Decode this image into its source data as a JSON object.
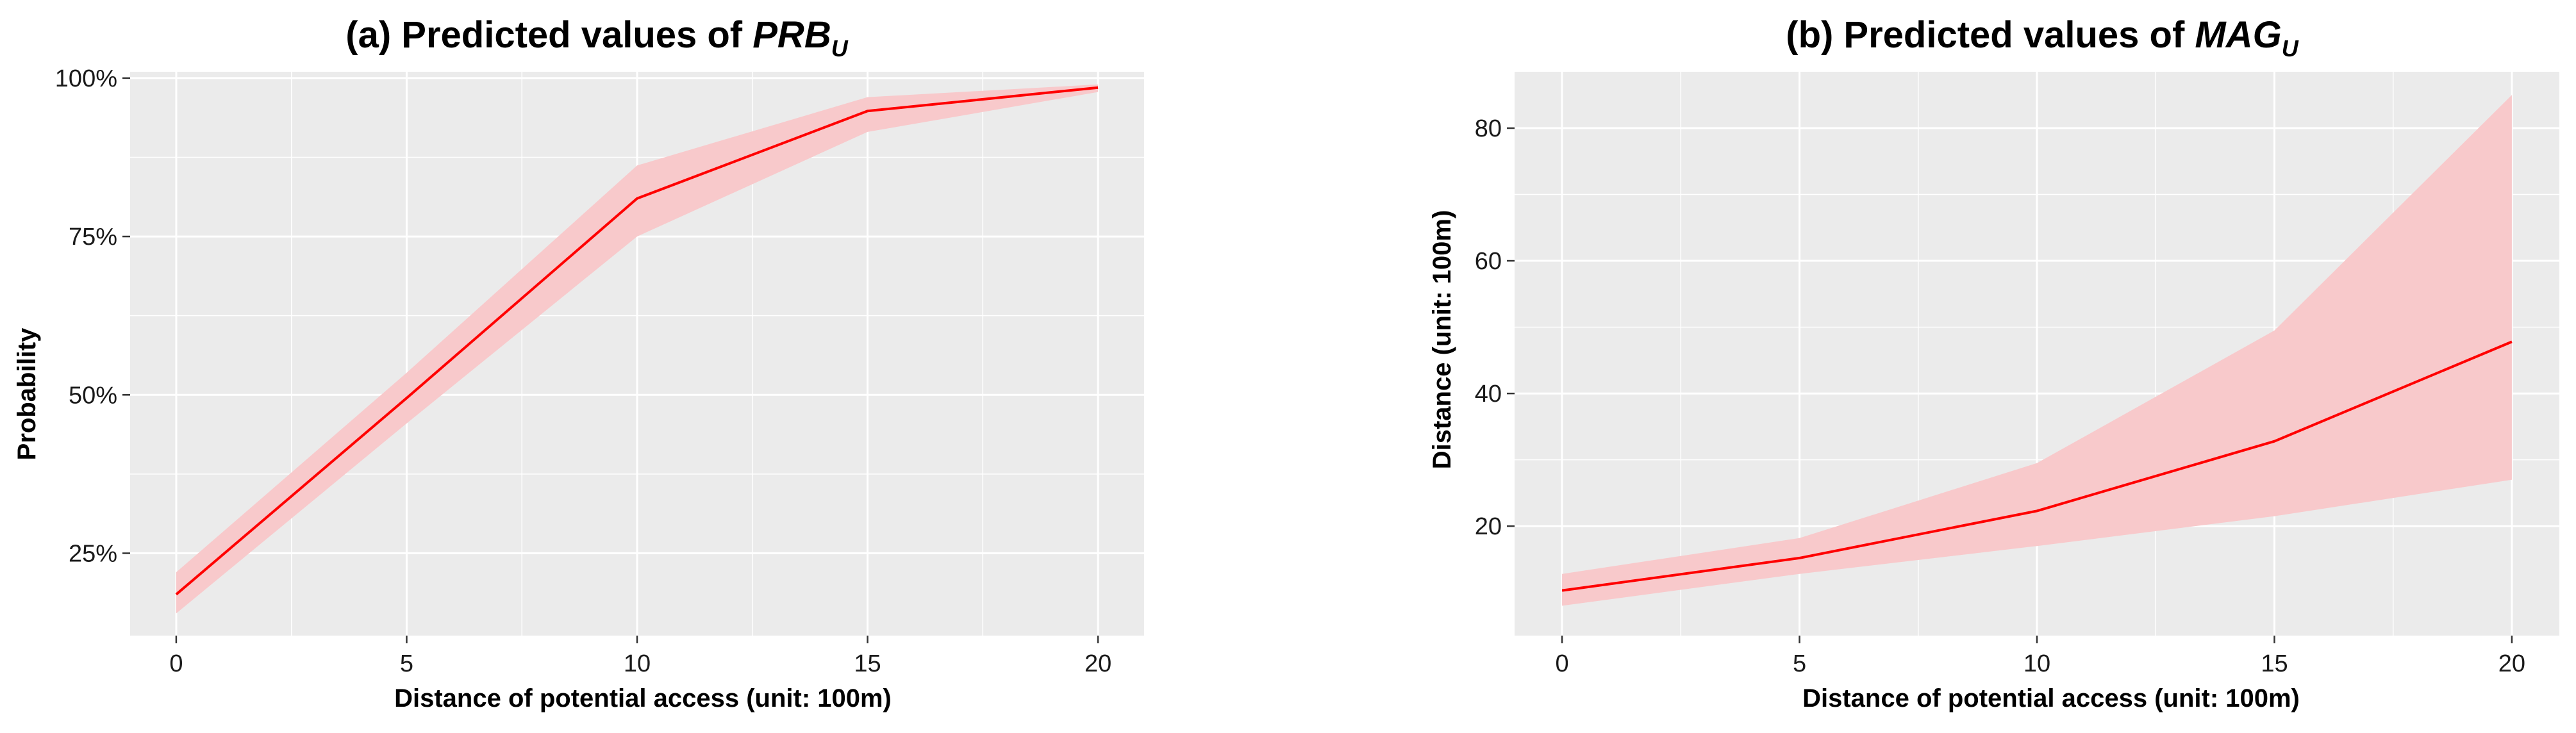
{
  "chart_data": [
    {
      "type": "line",
      "title": {
        "prefix": "(a) Predicted values of ",
        "var": "PRB",
        "sub": "U"
      },
      "xlabel": "Distance of potential access (unit: 100m)",
      "ylabel": "Probability",
      "xlim": [
        -1,
        21
      ],
      "ylim": [
        0.12,
        1.01
      ],
      "x_ticks": [
        0,
        5,
        10,
        15,
        20
      ],
      "y_ticks": [
        0.25,
        0.5,
        0.75,
        1.0
      ],
      "y_tick_labels": [
        "25%",
        "50%",
        "75%",
        "100%"
      ],
      "grid": true,
      "panel_background": "#ebebeb",
      "line_color": "#ff0000",
      "ribbon_color": "#f8c9cb",
      "series": [
        {
          "x": [
            0,
            5,
            10,
            15,
            20
          ],
          "y": [
            0.185,
            0.495,
            0.81,
            0.948,
            0.985
          ],
          "lower": [
            0.155,
            0.455,
            0.75,
            0.915,
            0.978
          ],
          "upper": [
            0.22,
            0.535,
            0.862,
            0.97,
            0.99
          ]
        }
      ]
    },
    {
      "type": "line",
      "title": {
        "prefix": "(b) Predicted values of ",
        "var": "MAG",
        "sub": "U"
      },
      "xlabel": "Distance of potential access (unit: 100m)",
      "ylabel": "Distance (unit: 100m)",
      "xlim": [
        -1,
        21
      ],
      "ylim": [
        3.5,
        88.5
      ],
      "x_ticks": [
        0,
        5,
        10,
        15,
        20
      ],
      "y_ticks": [
        20,
        40,
        60,
        80
      ],
      "y_tick_labels": [
        "20",
        "40",
        "60",
        "80"
      ],
      "grid": true,
      "panel_background": "#ebebeb",
      "line_color": "#ff0000",
      "ribbon_color": "#f8c9cb",
      "series": [
        {
          "x": [
            0,
            5,
            10,
            15,
            20
          ],
          "y": [
            10.3,
            15.2,
            22.3,
            32.8,
            47.8
          ],
          "lower": [
            8.0,
            12.8,
            17.0,
            21.5,
            27.0
          ],
          "upper": [
            12.8,
            18.2,
            29.5,
            49.5,
            85.0
          ]
        }
      ]
    }
  ]
}
